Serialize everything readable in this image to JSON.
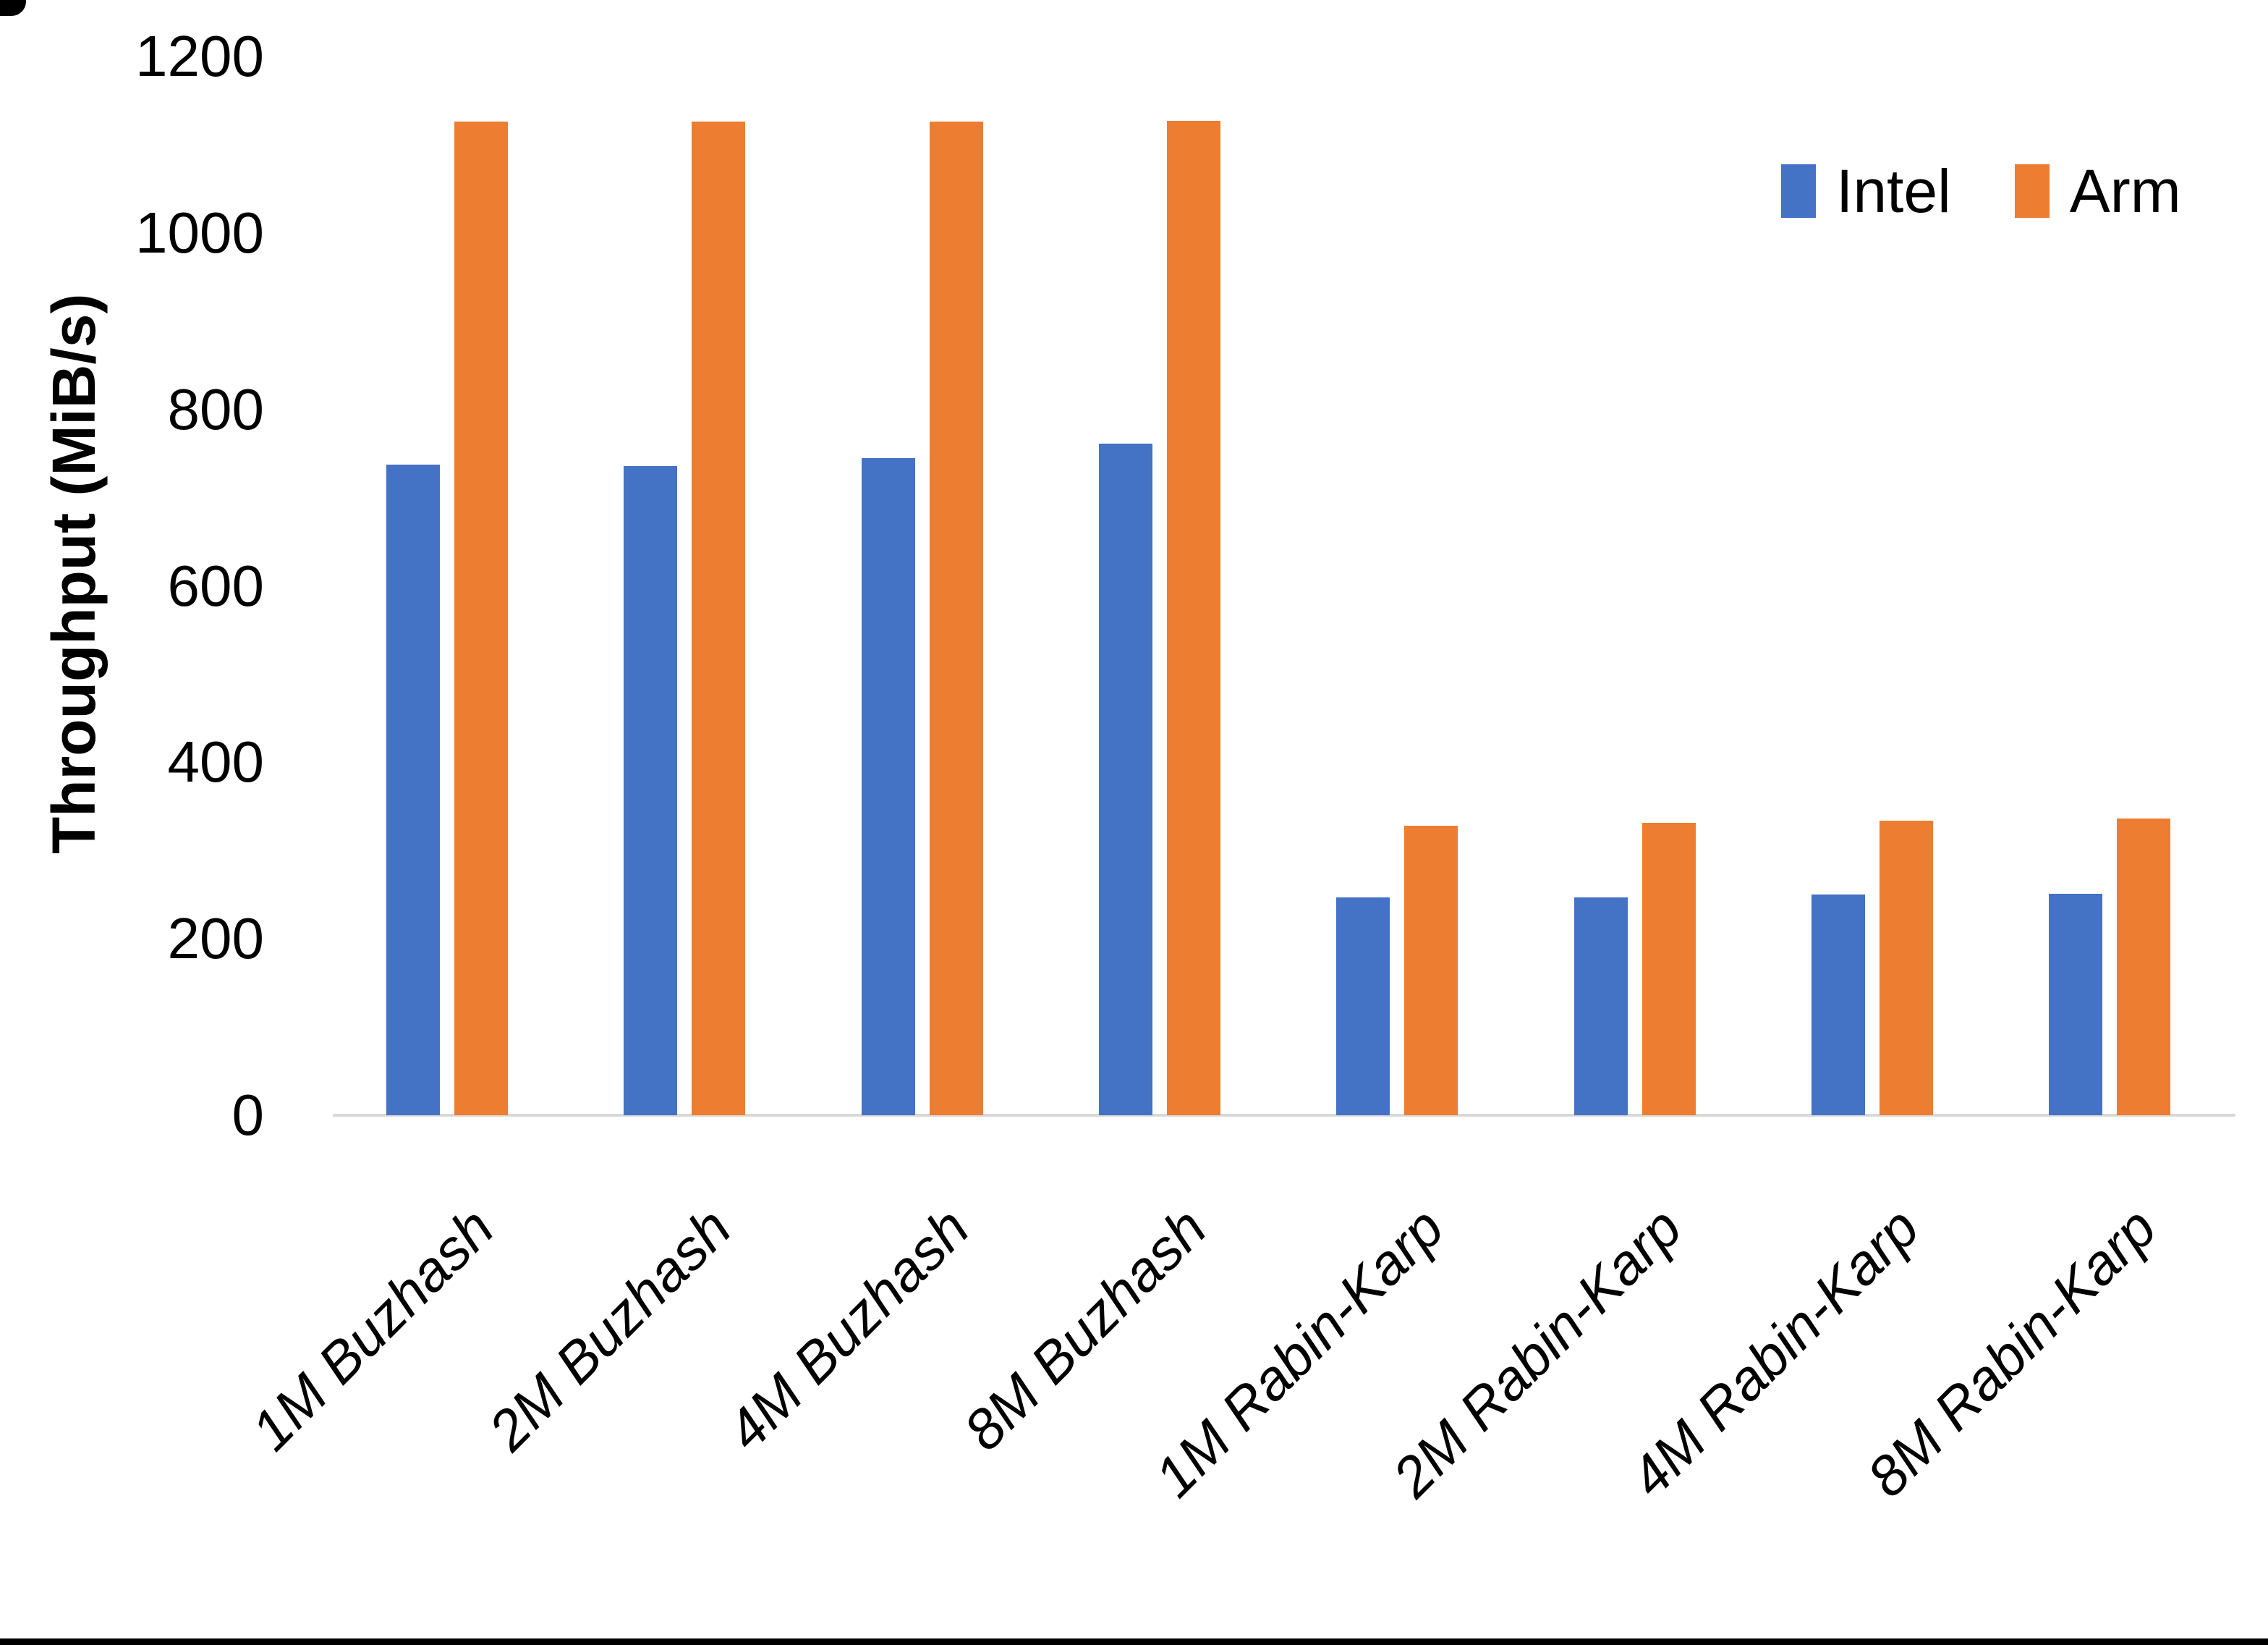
{
  "chart_data": {
    "type": "bar",
    "title": "",
    "categories": [
      "1M Buzhash",
      "2M Buzhash",
      "4M Buzhash",
      "8M Buzhash",
      "1M Rabin-Karp",
      "2M Rabin-Karp",
      "4M Rabin-Karp",
      "8M Rabin-Karp"
    ],
    "series": [
      {
        "name": "Intel",
        "color": "#4472C4",
        "values": [
          737,
          736,
          745,
          761,
          247,
          247,
          250,
          251
        ]
      },
      {
        "name": "Arm",
        "color": "#ED7D31",
        "values": [
          1126,
          1126,
          1126,
          1127,
          328,
          331,
          334,
          336
        ]
      }
    ],
    "xlabel": "",
    "ylabel": "Throughput (MiB/s)",
    "ylim": [
      0,
      1200
    ],
    "yticks": [
      0,
      200,
      400,
      600,
      800,
      1000,
      1200
    ],
    "grid": false,
    "legend_position": "top-right",
    "axis_line_color": "#D9D9D9",
    "text_color": "#000000"
  }
}
